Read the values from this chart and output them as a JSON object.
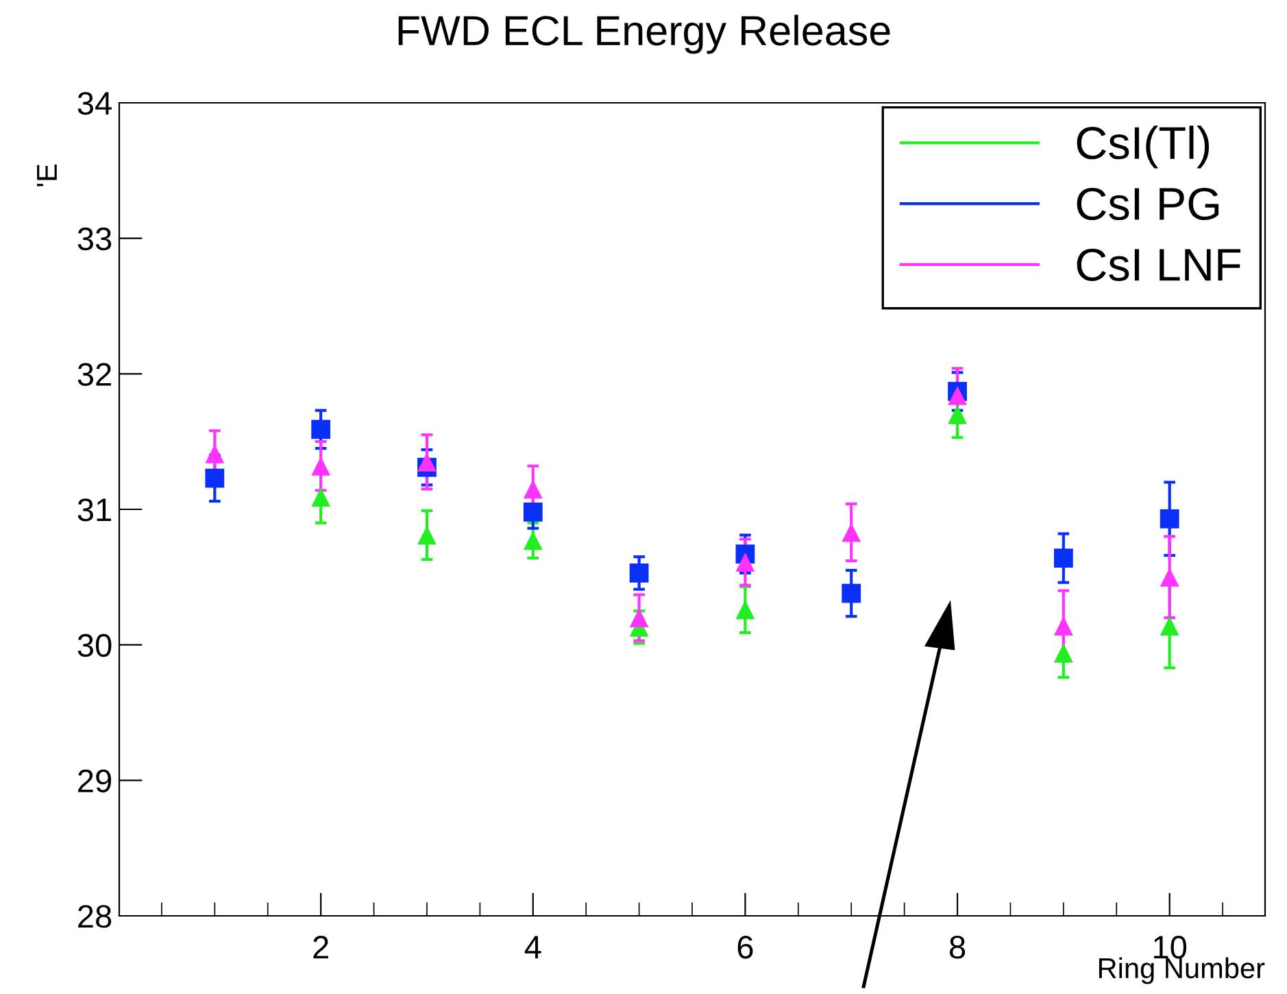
{
  "chart_data": {
    "type": "scatter",
    "title": "FWD ECL Energy Release",
    "xlabel": "Ring Number",
    "ylabel": "'E",
    "x": [
      1,
      2,
      3,
      4,
      5,
      6,
      7,
      8,
      9,
      10
    ],
    "xlim": [
      0.1,
      10.9
    ],
    "xticks": [
      2,
      4,
      6,
      8,
      10
    ],
    "ylim": [
      28,
      34
    ],
    "yticks": [
      28,
      29,
      30,
      31,
      32,
      33,
      34
    ],
    "legend": "top right",
    "series": [
      {
        "name": "CsI(Tl)",
        "color": "#22ee22",
        "marker": "triangle",
        "values": [
          null,
          31.09,
          30.81,
          30.77,
          30.13,
          30.26,
          null,
          31.7,
          29.94,
          30.14
        ],
        "errors": [
          null,
          0.19,
          0.18,
          0.13,
          0.12,
          0.17,
          null,
          0.17,
          0.18,
          0.31
        ]
      },
      {
        "name": "CsI PG",
        "color": "#0a2ff5",
        "marker": "square",
        "values": [
          31.23,
          31.59,
          31.31,
          30.98,
          30.53,
          30.67,
          30.38,
          31.87,
          30.64,
          30.93
        ],
        "errors": [
          0.17,
          0.14,
          0.13,
          0.12,
          0.12,
          0.14,
          0.17,
          0.14,
          0.18,
          0.27
        ]
      },
      {
        "name": "CsI LNF",
        "color": "#ff33ff",
        "marker": "triangle",
        "values": [
          31.41,
          31.32,
          31.35,
          31.15,
          30.2,
          30.61,
          30.83,
          31.84,
          30.14,
          30.5
        ],
        "errors": [
          0.17,
          0.18,
          0.2,
          0.17,
          0.17,
          0.17,
          0.21,
          0.2,
          0.26,
          0.3
        ]
      }
    ]
  }
}
